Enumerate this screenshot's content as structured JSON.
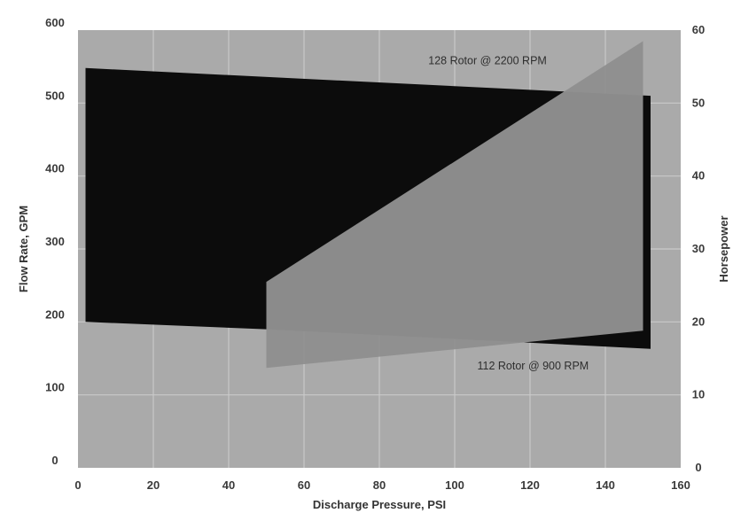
{
  "chart_data": {
    "type": "area",
    "title": "",
    "xlabel": "Discharge Pressure, PSI",
    "ylabel": "Flow Rate, GPM",
    "y2label": "Horsepower",
    "xlim": [
      0,
      160
    ],
    "ylim": [
      0,
      600
    ],
    "y2lim": [
      0,
      60
    ],
    "xticks": [
      "0",
      "20",
      "40",
      "60",
      "80",
      "100",
      "120",
      "140",
      "160"
    ],
    "yticks": [
      "0",
      "100",
      "200",
      "300",
      "400",
      "500",
      "600"
    ],
    "y2ticks": [
      "0",
      "10",
      "20",
      "30",
      "40",
      "50",
      "60"
    ],
    "grid": true,
    "series": [
      {
        "axis": "left",
        "color": "#0c0c0c",
        "points": [
          [
            2,
            548
          ],
          [
            152,
            510
          ],
          [
            152,
            163
          ],
          [
            50,
            190
          ],
          [
            2,
            200
          ]
        ]
      },
      {
        "axis": "right",
        "color": "#8f8f8f",
        "points": [
          [
            50,
            25.5
          ],
          [
            150,
            58.5
          ],
          [
            150,
            18.8
          ],
          [
            50,
            13.7
          ]
        ]
      }
    ],
    "annotations": [
      {
        "text": "128 Rotor @ 2200 RPM",
        "x": 93,
        "y": 553
      },
      {
        "text": "112 Rotor @ 900 RPM",
        "x": 106,
        "y": 135
      }
    ]
  },
  "colors": {
    "plot_background": "#aaaaaa",
    "gridline": "#c9c9c9",
    "flow_region": "#0c0c0c",
    "horsepower_region": "#8f8f8f"
  }
}
